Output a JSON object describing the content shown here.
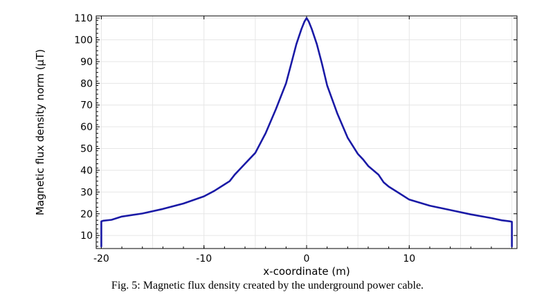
{
  "caption": "Fig. 5: Magnetic flux density created by the underground power cable.",
  "chart_data": {
    "type": "line",
    "xlabel": "x-coordinate (m)",
    "ylabel": "Magnetic flux density norm (μT)",
    "xlim": [
      -20.5,
      20.5
    ],
    "ylim": [
      4,
      111
    ],
    "xticks": [
      -20,
      -10,
      0,
      10
    ],
    "yticks": [
      10,
      20,
      30,
      40,
      50,
      60,
      70,
      80,
      90,
      100,
      110
    ],
    "grid": true,
    "line_color": "#1a1aa6",
    "series": [
      {
        "x": [
          -20,
          -20,
          -19.8,
          -19,
          -18,
          -16,
          -14,
          -12,
          -10,
          -9,
          -8,
          -7.5,
          -7,
          -6,
          -5.5,
          -5,
          -4,
          -3,
          -2,
          -1.5,
          -1,
          -0.5,
          -0.2,
          0,
          0.2,
          0.5,
          1,
          1.5,
          2,
          3,
          4,
          5,
          5.5,
          6,
          7,
          7.5,
          8,
          9,
          10,
          12,
          14,
          16,
          18,
          19,
          19.8,
          20,
          20
        ],
        "y": [
          5,
          16.5,
          16.8,
          17.2,
          18.7,
          20.1,
          22.2,
          24.7,
          28,
          30.5,
          33.5,
          35,
          38,
          43,
          45.5,
          48,
          57,
          68,
          80,
          89,
          98,
          105,
          108.5,
          110,
          108.5,
          105,
          98,
          89,
          79,
          66,
          55,
          47.5,
          45,
          42,
          38,
          34.5,
          32.5,
          29.5,
          26.5,
          23.7,
          21.7,
          19.7,
          18,
          17,
          16.5,
          16.3,
          5
        ]
      }
    ]
  }
}
